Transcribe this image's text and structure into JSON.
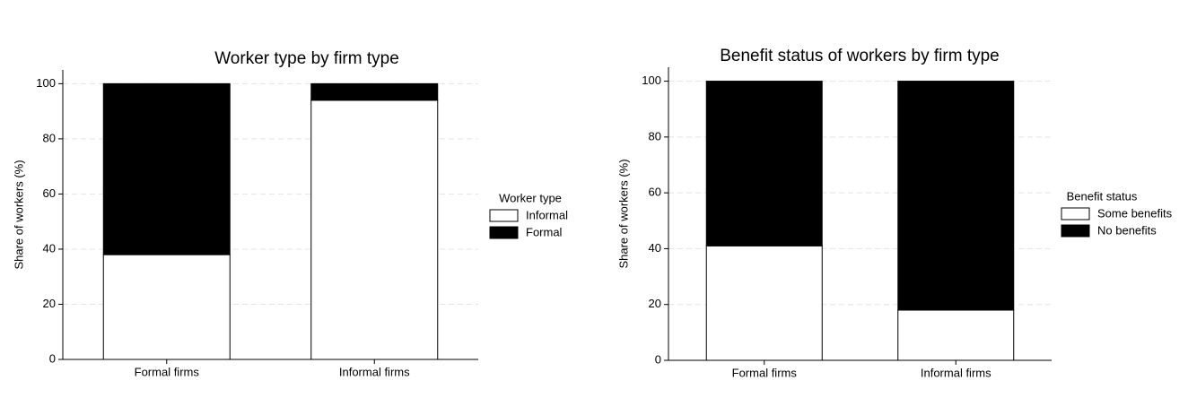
{
  "chart_data": [
    {
      "type": "bar",
      "stacked": true,
      "title": "Worker type by firm type",
      "ylabel": "Share of workers (%)",
      "categories": [
        "Formal firms",
        "Informal firms"
      ],
      "legend_title": "Worker type",
      "series": [
        {
          "name": "Informal",
          "color": "#ffffff",
          "values": [
            38,
            94
          ]
        },
        {
          "name": "Formal",
          "color": "#000000",
          "values": [
            62,
            6
          ]
        }
      ],
      "ylim": [
        0,
        105
      ],
      "yticks": [
        0,
        20,
        40,
        60,
        80,
        100
      ],
      "grid": true
    },
    {
      "type": "bar",
      "stacked": true,
      "title": "Benefit status of workers by firm type",
      "ylabel": "Share of workers (%)",
      "categories": [
        "Formal firms",
        "Informal firms"
      ],
      "legend_title": "Benefit status",
      "series": [
        {
          "name": "Some benefits",
          "color": "#ffffff",
          "values": [
            41,
            18
          ]
        },
        {
          "name": "No benefits",
          "color": "#000000",
          "values": [
            59,
            82
          ]
        }
      ],
      "ylim": [
        0,
        105
      ],
      "yticks": [
        0,
        20,
        40,
        60,
        80,
        100
      ],
      "grid": true
    }
  ]
}
